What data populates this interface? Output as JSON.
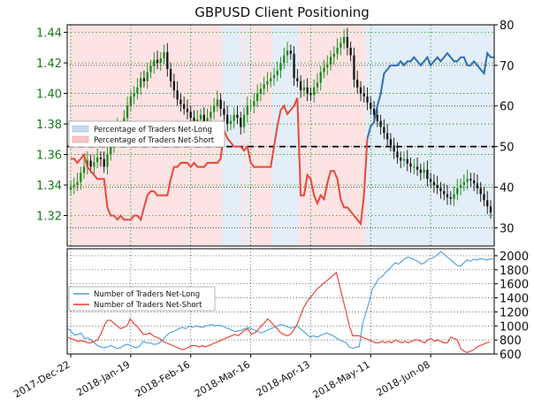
{
  "chart_data": {
    "type": "combined-price-sentiment",
    "title": "GBPUSD Client Positioning",
    "x_ticks": [
      "2017-Dec-22",
      "2018-Jan-19",
      "2018-Feb-16",
      "2018-Mar-16",
      "2018-Apr-13",
      "2018-May-11",
      "2018-Jun-08"
    ],
    "top_panel": {
      "price_axis": {
        "ticks": [
          1.32,
          1.34,
          1.36,
          1.38,
          1.4,
          1.42,
          1.44
        ],
        "range": [
          1.3,
          1.445
        ],
        "color": "#1a7a1a"
      },
      "percent_axis": {
        "ticks": [
          30,
          40,
          50,
          60,
          70,
          80
        ],
        "range": [
          25.5,
          80
        ]
      },
      "reference_line": 50,
      "legend": [
        {
          "label": "Percentage of Traders Net-Long",
          "color": "#c6dbef"
        },
        {
          "label": "Percentage of Traders Net-Short",
          "color": "#f7c6c6"
        }
      ],
      "price_close": [
        1.339,
        1.34,
        1.342,
        1.348,
        1.352,
        1.356,
        1.352,
        1.355,
        1.358,
        1.357,
        1.352,
        1.36,
        1.366,
        1.372,
        1.378,
        1.376,
        1.384,
        1.392,
        1.398,
        1.4,
        1.404,
        1.41,
        1.408,
        1.414,
        1.418,
        1.422,
        1.42,
        1.423,
        1.427,
        1.416,
        1.408,
        1.402,
        1.396,
        1.393,
        1.39,
        1.388,
        1.384,
        1.381,
        1.383,
        1.386,
        1.38,
        1.384,
        1.388,
        1.392,
        1.396,
        1.39,
        1.386,
        1.38,
        1.382,
        1.386,
        1.384,
        1.378,
        1.386,
        1.392,
        1.392,
        1.395,
        1.4,
        1.403,
        1.406,
        1.408,
        1.41,
        1.412,
        1.415,
        1.42,
        1.425,
        1.428,
        1.426,
        1.41,
        1.408,
        1.402,
        1.404,
        1.4,
        1.399,
        1.404,
        1.407,
        1.414,
        1.417,
        1.419,
        1.424,
        1.426,
        1.43,
        1.433,
        1.437,
        1.43,
        1.425,
        1.409,
        1.404,
        1.4,
        1.398,
        1.394,
        1.39,
        1.386,
        1.382,
        1.378,
        1.374,
        1.37,
        1.366,
        1.362,
        1.358,
        1.356,
        1.357,
        1.354,
        1.352,
        1.352,
        1.35,
        1.348,
        1.35,
        1.344,
        1.342,
        1.34,
        1.338,
        1.336,
        1.334,
        1.332,
        1.331,
        1.334,
        1.338,
        1.34,
        1.342,
        1.344,
        1.343,
        1.341,
        1.338,
        1.334,
        1.33,
        1.326,
        1.322
      ],
      "pct_net_long": [
        47,
        47,
        46,
        47,
        48,
        45,
        44,
        43,
        42,
        42,
        42,
        35,
        33,
        33,
        32,
        33,
        32,
        32,
        32,
        33,
        33,
        32,
        35,
        38,
        39,
        39,
        38,
        38,
        38,
        38,
        42,
        45,
        45,
        46,
        46,
        46,
        45,
        46,
        45,
        45,
        45,
        46,
        46,
        46,
        46,
        47,
        54,
        52,
        51,
        50,
        50,
        50,
        49,
        50,
        46,
        45,
        45,
        45,
        45,
        45,
        45,
        50,
        55,
        59,
        60,
        58,
        59,
        60,
        62,
        38,
        38,
        43,
        42,
        38,
        36,
        38,
        37,
        41,
        44,
        44,
        42,
        37,
        35,
        35,
        34,
        33,
        32,
        31,
        38,
        52,
        55,
        56,
        60,
        63,
        68,
        69,
        70,
        70,
        70,
        71,
        70,
        71,
        71,
        72,
        71,
        70,
        71,
        72,
        70,
        71,
        72,
        71,
        72,
        73,
        72,
        71,
        71,
        72,
        72,
        70,
        70,
        71,
        70,
        69,
        68,
        73,
        72,
        72
      ],
      "pct_net_long_style": {
        "line_before": "#e8483a",
        "line_after": "#2e6fad"
      }
    },
    "bottom_panel": {
      "axis": {
        "ticks": [
          600,
          800,
          1000,
          1200,
          1400,
          1600,
          1800,
          2000
        ],
        "range": [
          600,
          2100
        ]
      },
      "legend": [
        {
          "label": "Number of Traders Net-Long",
          "color": "#4a9ee0"
        },
        {
          "label": "Number of Traders Net-Short",
          "color": "#e83a2a"
        }
      ],
      "series_long": [
        960,
        920,
        870,
        880,
        900,
        820,
        830,
        800,
        760,
        720,
        700,
        690,
        700,
        720,
        700,
        680,
        690,
        720,
        740,
        720,
        700,
        690,
        720,
        780,
        760,
        760,
        740,
        740,
        760,
        800,
        860,
        900,
        920,
        940,
        960,
        980,
        960,
        1000,
        980,
        1000,
        990,
        980,
        1000,
        1010,
        1020,
        1000,
        1010,
        1000,
        980,
        960,
        940,
        920,
        930,
        940,
        960,
        980,
        960,
        940,
        920,
        900,
        920,
        940,
        960,
        980,
        1000,
        1020,
        1010,
        990,
        970,
        980,
        1000,
        960,
        920,
        880,
        840,
        860,
        840,
        860,
        880,
        900,
        880,
        860,
        830,
        800,
        780,
        760,
        700,
        680,
        700,
        700,
        1020,
        1180,
        1340,
        1520,
        1600,
        1680,
        1700,
        1760,
        1800,
        1850,
        1900,
        1880,
        1920,
        1960,
        1980,
        1960,
        1940,
        1920,
        1880,
        1900,
        1940,
        1960,
        1980,
        2020,
        2060,
        2020,
        1980,
        1940,
        1900,
        1860,
        1850,
        1900,
        1940,
        1920,
        1950,
        1940,
        1960,
        1950,
        1940,
        1950,
        1960
      ],
      "series_short": [
        840,
        820,
        800,
        780,
        790,
        780,
        760,
        760,
        780,
        800,
        880,
        1000,
        1080,
        1080,
        1040,
        1000,
        960,
        980,
        1000,
        1100,
        1040,
        1000,
        940,
        880,
        880,
        900,
        860,
        840,
        820,
        780,
        760,
        740,
        720,
        700,
        680,
        660,
        680,
        700,
        720,
        720,
        700,
        720,
        700,
        720,
        740,
        760,
        780,
        800,
        820,
        840,
        860,
        880,
        860,
        900,
        940,
        960,
        880,
        900,
        940,
        1000,
        1040,
        1100,
        1060,
        1000,
        960,
        900,
        880,
        860,
        880,
        940,
        1020,
        1140,
        1260,
        1340,
        1400,
        1460,
        1520,
        1560,
        1600,
        1640,
        1680,
        1720,
        1760,
        1580,
        1380,
        1200,
        1000,
        860,
        860,
        860,
        840,
        820,
        800,
        780,
        760,
        760,
        780,
        760,
        780,
        760,
        800,
        780,
        760,
        780,
        760,
        780,
        800,
        800,
        780,
        760,
        800,
        820,
        780,
        800,
        780,
        760,
        760,
        840,
        820,
        800,
        680,
        640,
        620,
        640,
        660,
        700,
        720,
        740,
        760,
        770
      ]
    }
  }
}
